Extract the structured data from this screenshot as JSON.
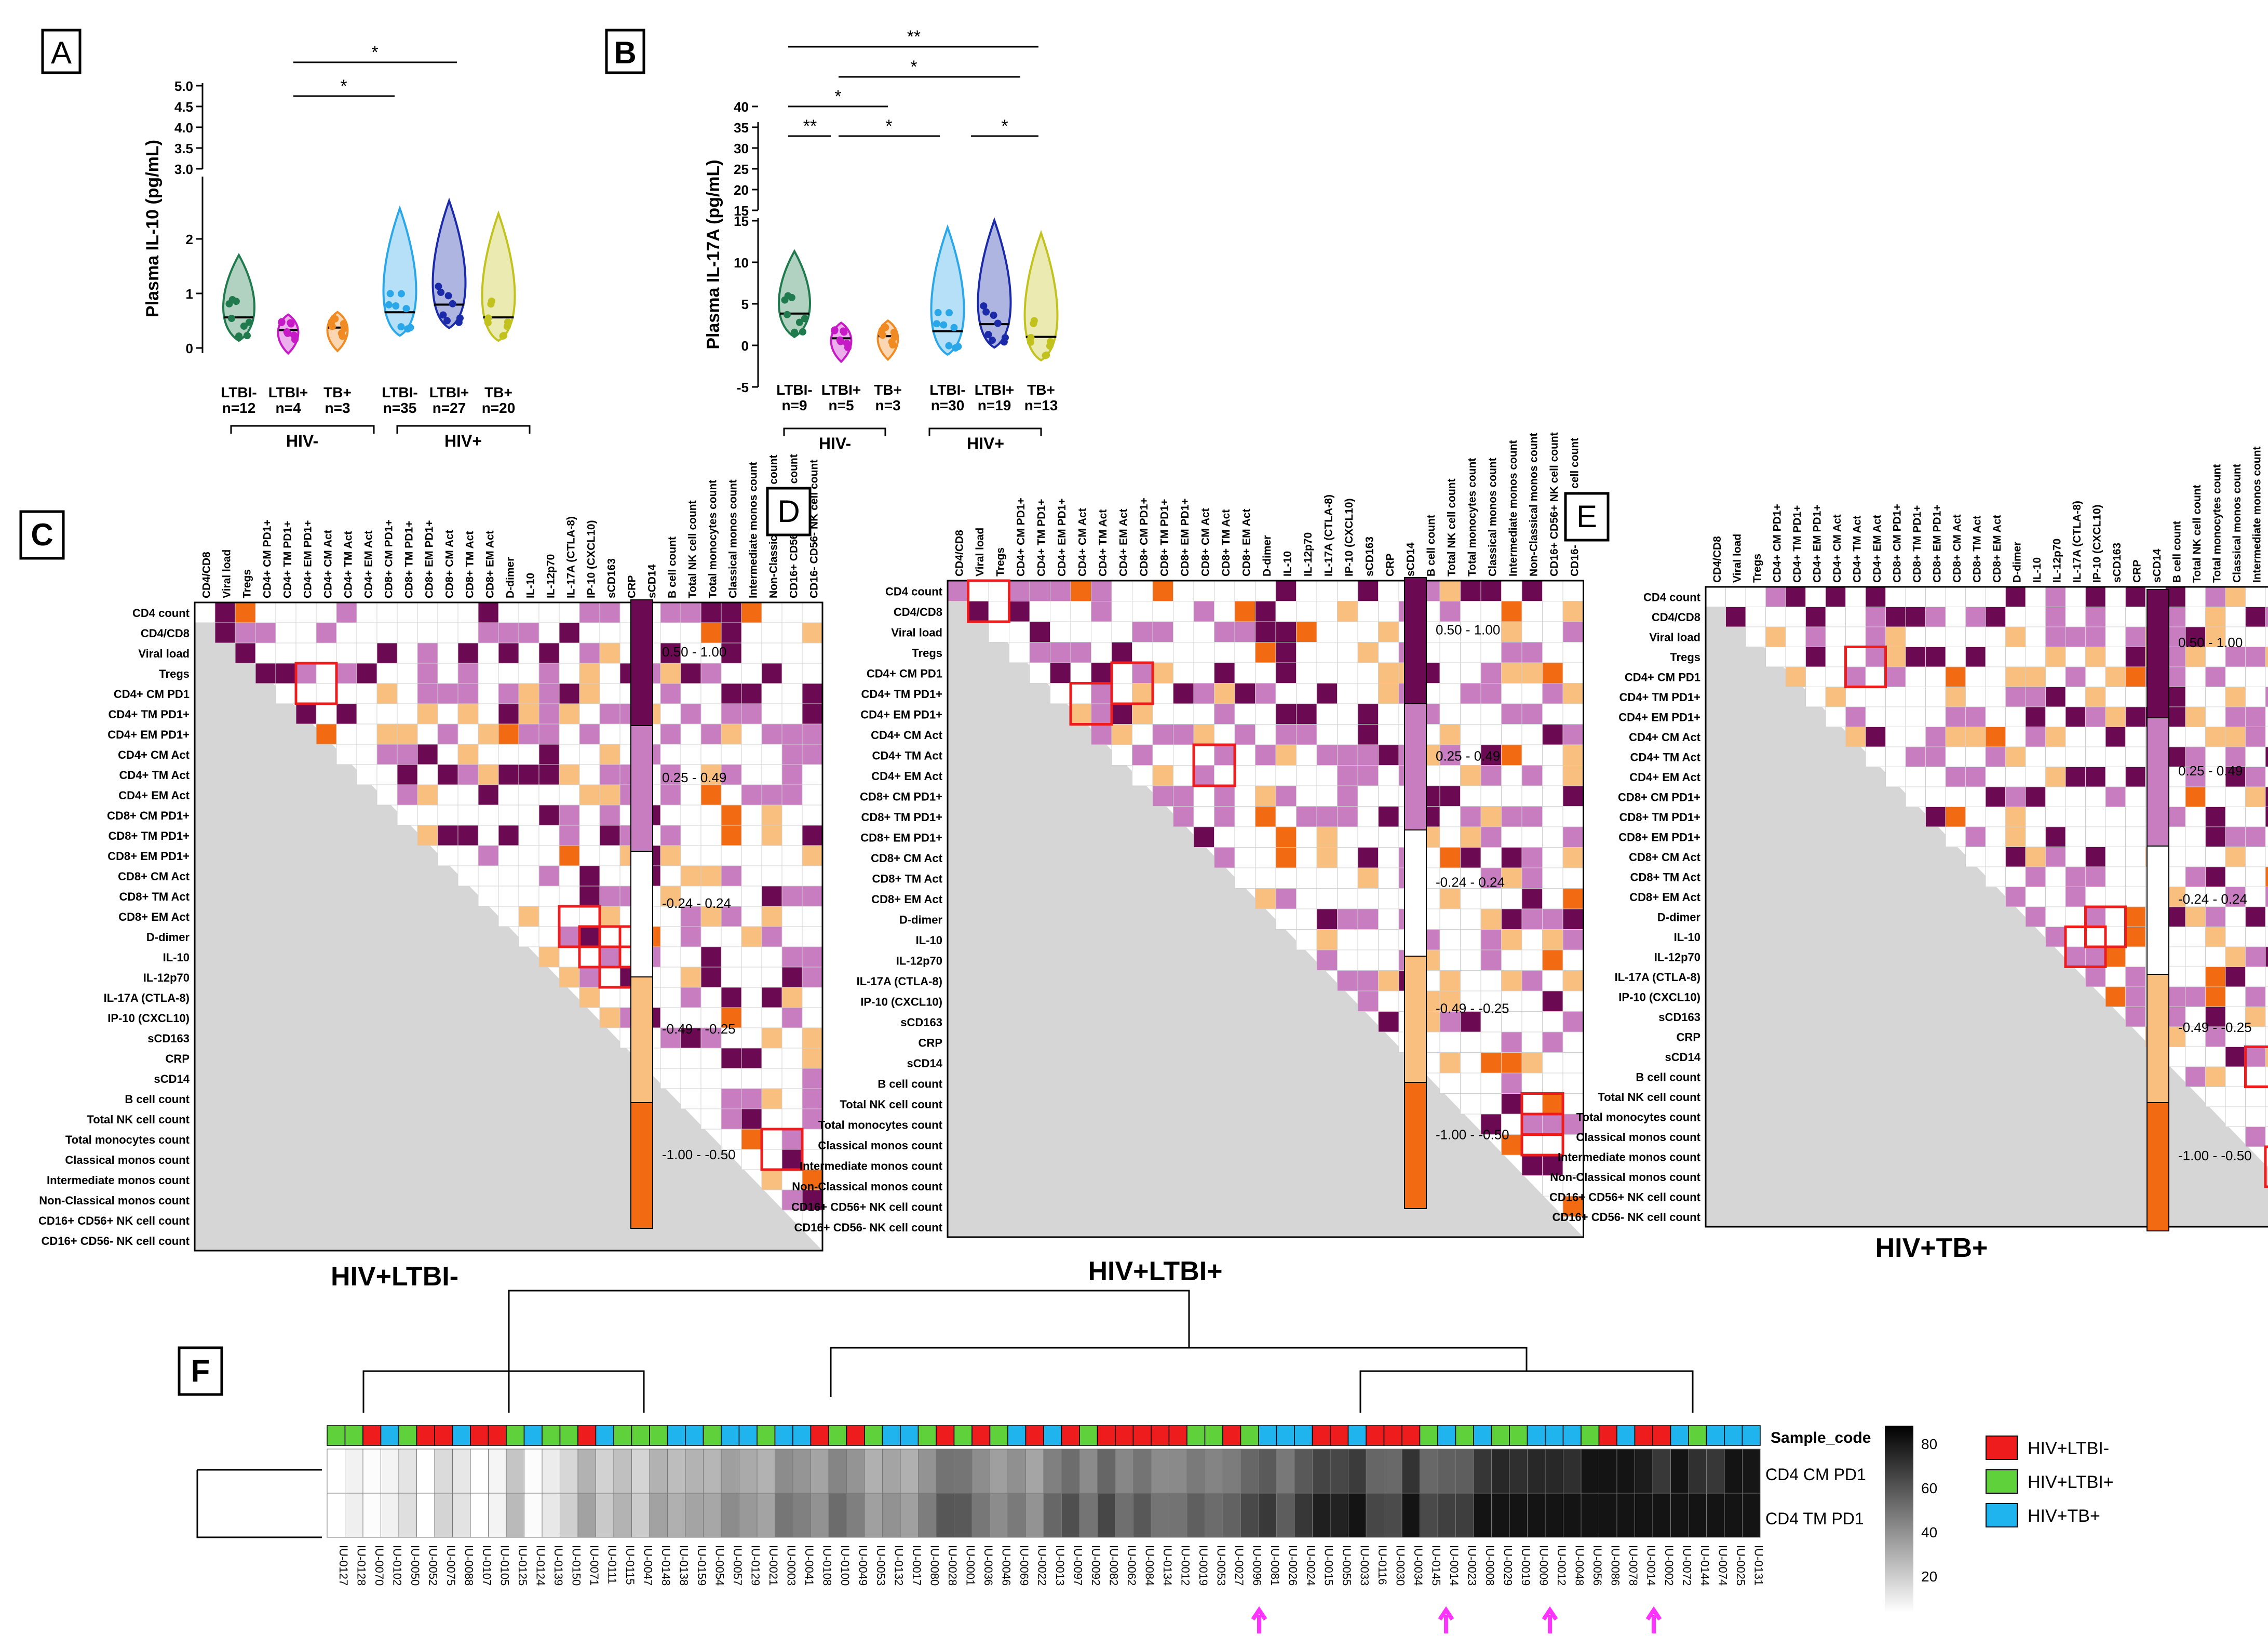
{
  "panels": {
    "A": {
      "letter": "A",
      "ylabel": "Plasma IL-10 (pg/mL)",
      "yticks_top": [
        "3.0",
        "3.5",
        "4.0",
        "4.5",
        "5.0"
      ],
      "yticks_bottom": [
        "0",
        "1",
        "2"
      ],
      "groups": [
        {
          "label": "LTBI-",
          "n": "n=12",
          "color": "#1f7a4d",
          "median": 0.6
        },
        {
          "label": "LTBI+",
          "n": "n=4",
          "color": "#c61ac6",
          "median": 0.35
        },
        {
          "label": "TB+",
          "n": "n=3",
          "color": "#f08a22",
          "median": 0.4
        },
        {
          "label": "LTBI-",
          "n": "n=35",
          "color": "#2aa7e8",
          "median": 0.7
        },
        {
          "label": "LTBI+",
          "n": "n=27",
          "color": "#1a2aa8",
          "median": 0.85
        },
        {
          "label": "TB+",
          "n": "n=20",
          "color": "#c2c21f",
          "median": 0.6
        }
      ],
      "hiv_neg": "HIV-",
      "hiv_pos": "HIV+",
      "sig": [
        "*",
        "*"
      ]
    },
    "B": {
      "letter": "B",
      "ylabel": "Plasma IL-17A (pg/mL)",
      "yticks_top": [
        "15",
        "20",
        "25",
        "30",
        "35",
        "40"
      ],
      "yticks_bottom": [
        "-5",
        "0",
        "5",
        "10",
        "15"
      ],
      "groups": [
        {
          "label": "LTBI-",
          "n": "n=9",
          "color": "#1f7a4d",
          "median": 4.5
        },
        {
          "label": "LTBI+",
          "n": "n=5",
          "color": "#c61ac6",
          "median": 1.0
        },
        {
          "label": "TB+",
          "n": "n=3",
          "color": "#f08a22",
          "median": 1.3
        },
        {
          "label": "LTBI-",
          "n": "n=30",
          "color": "#2aa7e8",
          "median": 2.0
        },
        {
          "label": "LTBI+",
          "n": "n=19",
          "color": "#1a2aa8",
          "median": 3.0
        },
        {
          "label": "TB+",
          "n": "n=13",
          "color": "#c2c21f",
          "median": 1.2
        }
      ],
      "hiv_neg": "HIV-",
      "hiv_pos": "HIV+",
      "sig": [
        "**",
        "*",
        "*",
        "**",
        "*",
        "*"
      ]
    },
    "C": {
      "letter": "C",
      "title": "HIV+LTBI-"
    },
    "D": {
      "letter": "D",
      "title": "HIV+LTBI+"
    },
    "E": {
      "letter": "E",
      "title": "HIV+TB+"
    },
    "F": {
      "letter": "F"
    }
  },
  "heatmap_vars_top": [
    "CD4/CD8",
    "Viral load",
    "Tregs",
    "CD4+ CM PD1+",
    "CD4+ TM PD1+",
    "CD4+ EM PD1+",
    "CD4+ CM Act",
    "CD4+ TM Act",
    "CD4+ EM Act",
    "CD8+ CM PD1+",
    "CD8+ TM PD1+",
    "CD8+ EM PD1+",
    "CD8+ CM Act",
    "CD8+ TM Act",
    "CD8+ EM Act",
    "D-dimer",
    "IL-10",
    "IL-12p70",
    "IL-17A (CTLA-8)",
    "IP-10 (CXCL10)",
    "sCD163",
    "CRP",
    "sCD14",
    "B cell count",
    "Total NK cell count",
    "Total monocytes count",
    "Classical monos count",
    "Intermediate monos count",
    "Non-Classical monos count",
    "CD16+ CD56+ NK cell count",
    "CD16- CD56- NK cell count"
  ],
  "heatmap_vars_left": [
    "CD4 count",
    "CD4/CD8",
    "Viral load",
    "Tregs",
    "CD4+ CM PD1",
    "CD4+ TM PD1+",
    "CD4+ EM PD1+",
    "CD4+ CM Act",
    "CD4+ TM Act",
    "CD4+ EM Act",
    "CD8+ CM PD1+",
    "CD8+ TM PD1+",
    "CD8+ EM PD1+",
    "CD8+ CM Act",
    "CD8+ TM Act",
    "CD8+ EM Act",
    "D-dimer",
    "IL-10",
    "IL-12p70",
    "IL-17A (CTLA-8)",
    "IP-10 (CXCL10)",
    "sCD163",
    "CRP",
    "sCD14",
    "B cell count",
    "Total NK cell count",
    "Total monocytes count",
    "Classical monos count",
    "Intermediate monos count",
    "Non-Classical monos count",
    "CD16+ CD56+ NK cell count",
    "CD16+ CD56- NK cell count"
  ],
  "color_legend": [
    {
      "label": "0.50 - 1.00",
      "color": "#6b0a52"
    },
    {
      "label": "0.25 - 0.49",
      "color": "#c77dc0"
    },
    {
      "label": "-0.24 - 0.24",
      "color": "#ffffff"
    },
    {
      "label": "-0.49 - -0.25",
      "color": "#f8bf7e"
    },
    {
      "label": "-1.00 - -0.50",
      "color": "#f26b12"
    }
  ],
  "cluster": {
    "row_labels": [
      "CD4 CM PD1",
      "CD4 TM PD1"
    ],
    "sample_code_label": "Sample_code",
    "scale_ticks": [
      "80",
      "60",
      "40",
      "20"
    ],
    "legend": [
      {
        "label": "HIV+LTBI-",
        "color": "#ee1c1c"
      },
      {
        "label": "HIV+LTBI+",
        "color": "#5fd13b"
      },
      {
        "label": "HIV+TB+",
        "color": "#1fb4ee"
      }
    ],
    "samples": [
      "IU-0127",
      "IU-0128",
      "IU-0070",
      "IU-0102",
      "IU-0050",
      "IU-0052",
      "IU-0075",
      "IU-0088",
      "IU-0107",
      "IU-0105",
      "IU-0125",
      "IU-0124",
      "IU-0139",
      "IU-0150",
      "IU-0071",
      "IU-0111",
      "IU-0115",
      "IU-0047",
      "IU-0148",
      "IU-0138",
      "IU-0159",
      "IU-0054",
      "IU-0057",
      "IU-0129",
      "IU-0021",
      "IU-0003",
      "IU-0041",
      "IU-0108",
      "IU-0100",
      "IU-0049",
      "IU-0053",
      "IU-0132",
      "IU-0017",
      "IU-0080",
      "IU-0028",
      "IU-0001",
      "IU-0036",
      "IU-0046",
      "IU-0069",
      "IU-0022",
      "IU-0013",
      "IU-0097",
      "IU-0092",
      "IU-0082",
      "IU-0062",
      "IU-0084",
      "IU-0134",
      "IU-0012",
      "IU-0019",
      "IU-0053",
      "IU-0027",
      "IU-0096",
      "IU-0081",
      "IU-0026",
      "IU-0024",
      "IU-0015",
      "IU-0055",
      "IU-0033",
      "IU-0116",
      "IU-0030",
      "IU-0034",
      "IU-0145",
      "IU-0014",
      "IU-0023",
      "IU-0008",
      "IU-0029",
      "IU-0019",
      "IU-0009",
      "IU-0012",
      "IU-0048",
      "IU-0056",
      "IU-0086",
      "IU-0078",
      "IU-0014",
      "IU-0002",
      "IU-0072",
      "IU-0144",
      "IU-0074",
      "IU-0025",
      "IU-0131"
    ]
  }
}
